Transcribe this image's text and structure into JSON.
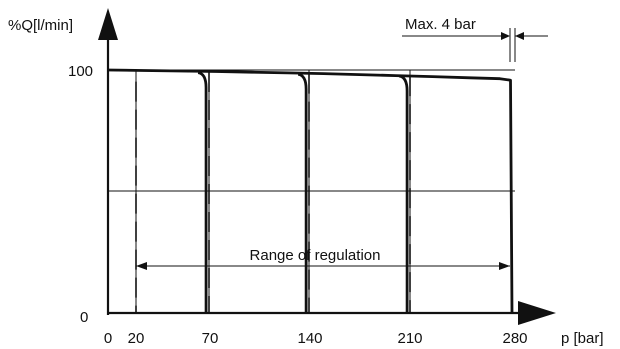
{
  "chart_data": {
    "type": "line",
    "ylabel": "%Q[l/min]",
    "xlabel": "p [bar]",
    "x_ticks": [
      0,
      20,
      70,
      140,
      210,
      280
    ],
    "y_ticks": [
      0,
      100
    ],
    "xlim": [
      0,
      300
    ],
    "ylim": [
      0,
      100
    ],
    "grid": true,
    "curve": {
      "x": [
        0,
        25,
        50,
        75,
        100,
        125,
        150,
        175,
        200,
        225,
        250,
        270,
        277,
        278
      ],
      "y": [
        100,
        99.8,
        99.6,
        99.4,
        99.1,
        98.8,
        98.5,
        98.1,
        97.7,
        97.3,
        96.8,
        96.4,
        95.8,
        0
      ]
    },
    "setting_lines": [
      {
        "x": 20,
        "y_top": 95.2,
        "style": "dashed"
      },
      {
        "x": 70,
        "y_top": 99.2,
        "style": "dashed"
      },
      {
        "x": 140,
        "y_top": 98.5,
        "style": "dashed"
      },
      {
        "x": 210,
        "y_top": 97.5,
        "style": "dashed"
      }
    ],
    "cutoff_lines": [
      {
        "x": 68
      },
      {
        "x": 138
      },
      {
        "x": 208
      },
      {
        "x": 278
      }
    ],
    "annotations": {
      "range": {
        "text": "Range of regulation",
        "x_from": 20,
        "x_to": 278,
        "y": 20
      },
      "max": {
        "text": "Max. 4 bar",
        "x_from": 274,
        "x_to": 278
      }
    }
  }
}
